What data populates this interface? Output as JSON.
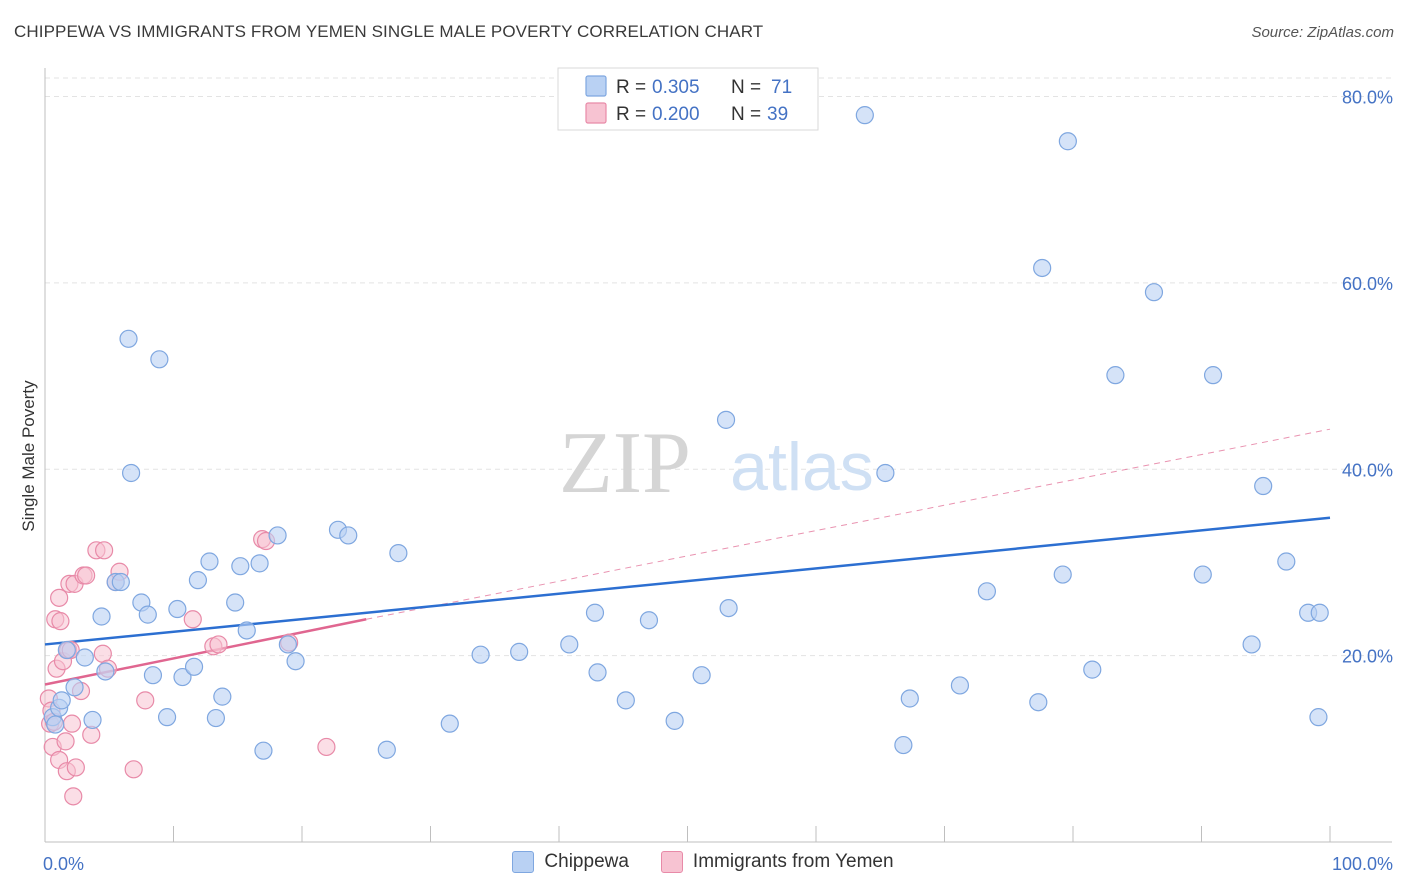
{
  "title": "CHIPPEWA VS IMMIGRANTS FROM YEMEN SINGLE MALE POVERTY CORRELATION CHART",
  "source": "Source: ZipAtlas.com",
  "watermark": {
    "zip": "ZIP",
    "atlas": "atlas"
  },
  "colors": {
    "blue_fill": "#b9d1f3",
    "blue_stroke": "#7fa7e0",
    "blue_line": "#2c6fd1",
    "pink_fill": "#f7c3d2",
    "pink_stroke": "#e88aa8",
    "pink_line": "#e06690",
    "axis_text": "#4472c4"
  },
  "legend": [
    {
      "r_label": "R =",
      "r_value": "0.305",
      "n_label": "N =",
      "n_value": "71"
    },
    {
      "r_label": "R =",
      "r_value": "0.200",
      "n_label": "N =",
      "n_value": "39"
    }
  ],
  "bottom_legend": [
    "Chippewa",
    "Immigrants from Yemen"
  ],
  "chart_data": {
    "type": "scatter",
    "title": "CHIPPEWA VS IMMIGRANTS FROM YEMEN SINGLE MALE POVERTY CORRELATION CHART",
    "xlabel": "",
    "ylabel": "Single Male Poverty",
    "xlim": [
      0,
      100
    ],
    "ylim": [
      0,
      80
    ],
    "x_tick_labels": [
      "0.0%",
      "100.0%"
    ],
    "y_ticks": [
      20,
      40,
      60,
      80
    ],
    "y_tick_labels": [
      "20.0%",
      "40.0%",
      "60.0%",
      "80.0%"
    ],
    "grid": true,
    "legend_position": "top-center",
    "series": [
      {
        "name": "Chippewa",
        "r": 0.305,
        "n": 71,
        "trend": {
          "x": [
            0,
            100
          ],
          "y": [
            21.2,
            34.8
          ],
          "style": "solid"
        },
        "points": [
          [
            0.6,
            13.4
          ],
          [
            0.8,
            12.6
          ],
          [
            1.1,
            14.4
          ],
          [
            1.3,
            15.2
          ],
          [
            1.7,
            20.6
          ],
          [
            2.3,
            16.6
          ],
          [
            3.1,
            19.8
          ],
          [
            3.7,
            13.1
          ],
          [
            4.4,
            24.2
          ],
          [
            4.7,
            18.3
          ],
          [
            5.5,
            27.9
          ],
          [
            5.9,
            27.9
          ],
          [
            6.5,
            54.0
          ],
          [
            6.7,
            39.6
          ],
          [
            7.5,
            25.7
          ],
          [
            8.0,
            24.4
          ],
          [
            8.4,
            17.9
          ],
          [
            8.9,
            51.8
          ],
          [
            9.5,
            13.4
          ],
          [
            10.3,
            25.0
          ],
          [
            10.7,
            17.7
          ],
          [
            11.6,
            18.8
          ],
          [
            11.9,
            28.1
          ],
          [
            12.8,
            30.1
          ],
          [
            13.3,
            13.3
          ],
          [
            13.8,
            15.6
          ],
          [
            14.8,
            25.7
          ],
          [
            15.2,
            29.6
          ],
          [
            15.7,
            22.7
          ],
          [
            16.7,
            29.9
          ],
          [
            17.0,
            9.8
          ],
          [
            18.1,
            32.9
          ],
          [
            18.9,
            21.2
          ],
          [
            19.5,
            19.4
          ],
          [
            22.8,
            33.5
          ],
          [
            23.6,
            32.9
          ],
          [
            26.6,
            9.9
          ],
          [
            27.5,
            31.0
          ],
          [
            31.5,
            12.7
          ],
          [
            33.9,
            20.1
          ],
          [
            36.9,
            20.4
          ],
          [
            40.8,
            21.2
          ],
          [
            42.8,
            24.6
          ],
          [
            43.0,
            18.2
          ],
          [
            45.2,
            15.2
          ],
          [
            47.0,
            23.8
          ],
          [
            49.0,
            13.0
          ],
          [
            51.1,
            17.9
          ],
          [
            53.0,
            45.3
          ],
          [
            53.2,
            25.1
          ],
          [
            63.8,
            78.0
          ],
          [
            65.4,
            39.6
          ],
          [
            66.8,
            10.4
          ],
          [
            67.3,
            15.4
          ],
          [
            71.2,
            16.8
          ],
          [
            73.3,
            26.9
          ],
          [
            77.3,
            15.0
          ],
          [
            77.6,
            61.6
          ],
          [
            79.2,
            28.7
          ],
          [
            79.6,
            75.2
          ],
          [
            81.5,
            18.5
          ],
          [
            83.3,
            50.1
          ],
          [
            86.3,
            59.0
          ],
          [
            90.1,
            28.7
          ],
          [
            90.9,
            50.1
          ],
          [
            93.9,
            21.2
          ],
          [
            94.8,
            38.2
          ],
          [
            96.6,
            30.1
          ],
          [
            98.3,
            24.6
          ],
          [
            99.2,
            24.6
          ],
          [
            99.1,
            13.4
          ]
        ]
      },
      {
        "name": "Immigrants from Yemen",
        "r": 0.2,
        "n": 39,
        "trend": {
          "x": [
            0,
            25
          ],
          "y": [
            16.9,
            23.9
          ],
          "style": "solid",
          "extended_to": [
            100,
            44.3
          ],
          "extended_style": "dashed"
        },
        "points": [
          [
            0.3,
            15.4
          ],
          [
            0.4,
            12.7
          ],
          [
            0.5,
            14.1
          ],
          [
            0.6,
            10.2
          ],
          [
            0.7,
            12.9
          ],
          [
            0.8,
            23.9
          ],
          [
            0.9,
            18.6
          ],
          [
            1.1,
            26.2
          ],
          [
            1.1,
            8.8
          ],
          [
            1.2,
            23.7
          ],
          [
            1.4,
            19.4
          ],
          [
            1.6,
            10.8
          ],
          [
            1.7,
            7.6
          ],
          [
            1.8,
            20.6
          ],
          [
            1.9,
            27.7
          ],
          [
            2.0,
            20.6
          ],
          [
            2.1,
            12.7
          ],
          [
            2.2,
            4.9
          ],
          [
            2.3,
            27.7
          ],
          [
            2.4,
            8.0
          ],
          [
            2.8,
            16.2
          ],
          [
            3.0,
            28.6
          ],
          [
            3.2,
            28.6
          ],
          [
            3.6,
            11.5
          ],
          [
            4.0,
            31.3
          ],
          [
            4.5,
            20.2
          ],
          [
            4.6,
            31.3
          ],
          [
            4.9,
            18.6
          ],
          [
            5.5,
            27.9
          ],
          [
            5.8,
            29.0
          ],
          [
            6.9,
            7.8
          ],
          [
            7.8,
            15.2
          ],
          [
            11.5,
            23.9
          ],
          [
            13.1,
            21.0
          ],
          [
            16.9,
            32.5
          ],
          [
            17.2,
            32.3
          ],
          [
            19.0,
            21.4
          ],
          [
            21.9,
            10.2
          ],
          [
            13.5,
            21.2
          ]
        ]
      }
    ]
  }
}
